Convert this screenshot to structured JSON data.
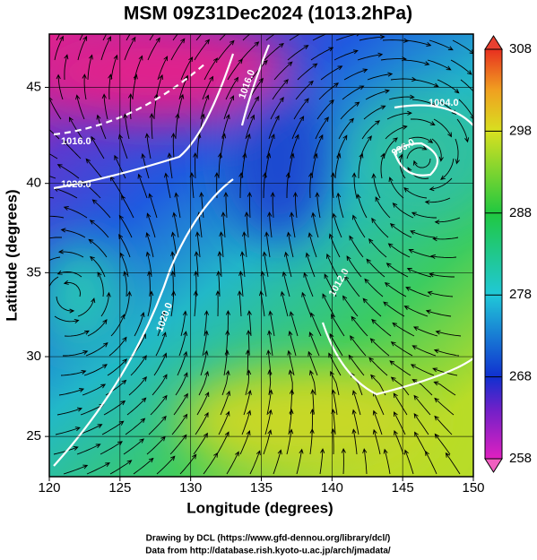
{
  "chart_data": {
    "type": "map",
    "title": "MSM 09Z31Dec2024 (1013.2hPa)",
    "x_label": "Longitude (degrees)",
    "y_label": "Latitude  (degrees)",
    "xlim": [
      120,
      150
    ],
    "xticks": [
      120,
      125,
      130,
      135,
      140,
      145,
      150
    ],
    "ylim": [
      22.4,
      47.6
    ],
    "yticks": [
      25,
      30,
      35,
      40,
      45
    ],
    "projection": "mercator",
    "grid": true,
    "colorbar": {
      "lim": [
        258,
        308
      ],
      "ticks": [
        258,
        268,
        278,
        288,
        298,
        308
      ]
    },
    "contour_labels": [
      "1016.0",
      "1016.0",
      "1020.0",
      "1004.0",
      "996.0",
      "1012.0",
      "1020.0"
    ],
    "footer": [
      "Drawing by DCL (https://www.gfd-dennou.org/library/dcl/)",
      "Data from http://database.rish.kyoto-u.ac.jp/arch/jmadata/"
    ]
  }
}
